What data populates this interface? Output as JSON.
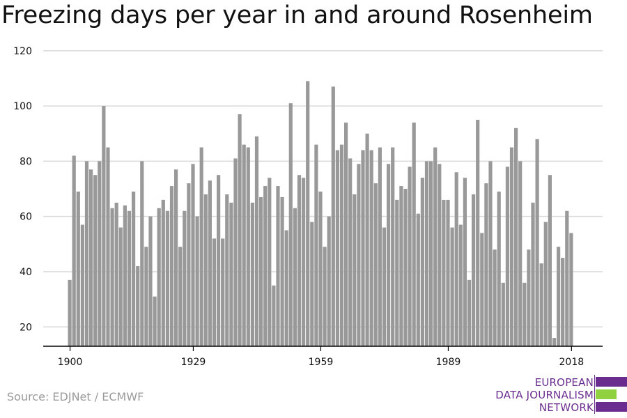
{
  "title": "Freezing days per year in and around Rosenheim",
  "source": "Source: EDJNet / ECMWF",
  "logo": {
    "line1": "EUROPEAN",
    "line2": "DATA JOURNALISM",
    "line3": "NETWORK",
    "colors": {
      "purple": "#6a2c8f",
      "green": "#8fd13f"
    }
  },
  "colors": {
    "bar": "#999999",
    "grid": "#d9d9d9",
    "axis": "#000000"
  },
  "chart_data": {
    "type": "bar",
    "title": "Freezing days per year in and around Rosenheim",
    "xlabel": "",
    "ylabel": "",
    "ylim": [
      13,
      125
    ],
    "yticks": [
      20,
      40,
      60,
      80,
      100,
      120
    ],
    "xticks": [
      1900,
      1929,
      1959,
      1989,
      2018
    ],
    "grid": true,
    "x_start": 1900,
    "x_end": 2018,
    "values": [
      37,
      82,
      69,
      57,
      80,
      77,
      75,
      80,
      100,
      85,
      63,
      65,
      56,
      64,
      62,
      69,
      42,
      80,
      49,
      60,
      31,
      63,
      66,
      62,
      71,
      77,
      49,
      62,
      72,
      79,
      60,
      85,
      68,
      73,
      52,
      75,
      52,
      68,
      65,
      81,
      97,
      86,
      85,
      65,
      89,
      67,
      71,
      74,
      35,
      71,
      67,
      55,
      101,
      63,
      75,
      74,
      109,
      58,
      86,
      69,
      49,
      60,
      107,
      84,
      86,
      94,
      81,
      68,
      79,
      84,
      90,
      84,
      72,
      85,
      56,
      79,
      85,
      66,
      71,
      70,
      78,
      94,
      61,
      74,
      80,
      80,
      85,
      79,
      66,
      66,
      56,
      76,
      57,
      74,
      37,
      68,
      95,
      54,
      72,
      80,
      48,
      69,
      36,
      78,
      85,
      92,
      80,
      36,
      48,
      65,
      88,
      43,
      58,
      75,
      16,
      49,
      45,
      62,
      54
    ]
  }
}
